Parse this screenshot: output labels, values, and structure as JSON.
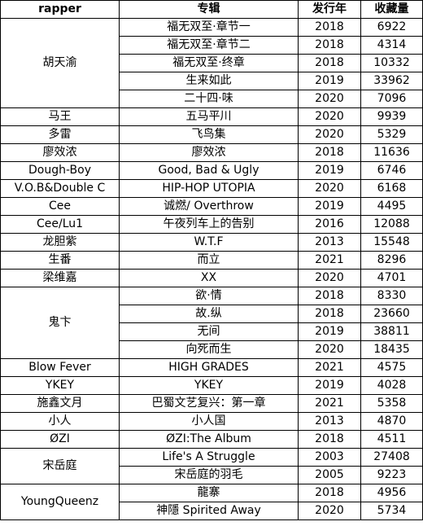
{
  "headers": [
    "rapper",
    "专辑",
    "发行年",
    "收藏量"
  ],
  "rows": [
    {
      "rapper": "胡天渝",
      "span": 5,
      "album": "福无双至·章节一",
      "year": "2018",
      "count": "6922"
    },
    {
      "rapper": null,
      "album": "福无双至·章节二",
      "year": "2018",
      "count": "4314"
    },
    {
      "rapper": null,
      "album": "福无双至·终章",
      "year": "2018",
      "count": "10332"
    },
    {
      "rapper": null,
      "album": "生来如此",
      "year": "2019",
      "count": "33962"
    },
    {
      "rapper": null,
      "album": "二十四·味",
      "year": "2020",
      "count": "7096"
    },
    {
      "rapper": "马王",
      "span": 1,
      "album": "五马平川",
      "year": "2020",
      "count": "9939"
    },
    {
      "rapper": "多雷",
      "span": 1,
      "album": "飞鸟集",
      "year": "2020",
      "count": "5329"
    },
    {
      "rapper": "廖效浓",
      "span": 1,
      "album": "廖效浓",
      "year": "2018",
      "count": "11636"
    },
    {
      "rapper": "Dough-Boy",
      "span": 1,
      "album": "Good, Bad & Ugly",
      "year": "2019",
      "count": "6746"
    },
    {
      "rapper": "V.O.B&Double C",
      "span": 1,
      "album": "HIP-HOP UTOPIA",
      "year": "2020",
      "count": "6168"
    },
    {
      "rapper": "Cee",
      "span": 1,
      "album": "诚燃/ Overthrow",
      "year": "2019",
      "count": "4495"
    },
    {
      "rapper": "Cee/Lu1",
      "span": 1,
      "album": "午夜列车上的告别",
      "year": "2016",
      "count": "12088"
    },
    {
      "rapper": "龙胆紫",
      "span": 1,
      "album": "W.T.F",
      "year": "2013",
      "count": "15548"
    },
    {
      "rapper": "生番",
      "span": 1,
      "album": "而立",
      "year": "2021",
      "count": "8296"
    },
    {
      "rapper": "梁维嘉",
      "span": 1,
      "album": "XX",
      "year": "2020",
      "count": "4701"
    },
    {
      "rapper": "鬼卞",
      "span": 4,
      "album": "欲·情",
      "year": "2018",
      "count": "8330"
    },
    {
      "rapper": null,
      "album": "故.纵",
      "year": "2018",
      "count": "23660"
    },
    {
      "rapper": null,
      "album": "无间",
      "year": "2019",
      "count": "38811"
    },
    {
      "rapper": null,
      "album": "向死而生",
      "year": "2020",
      "count": "18435"
    },
    {
      "rapper": "Blow Fever",
      "span": 1,
      "album": "HIGH GRADES",
      "year": "2021",
      "count": "4575"
    },
    {
      "rapper": "YKEY",
      "span": 1,
      "album": "YKEY",
      "year": "2019",
      "count": "4028"
    },
    {
      "rapper": "施鑫文月",
      "span": 1,
      "album": "巴蜀文艺复兴：第一章",
      "year": "2021",
      "count": "5358"
    },
    {
      "rapper": "小人",
      "span": 1,
      "album": "小人国",
      "year": "2013",
      "count": "4870"
    },
    {
      "rapper": "ØZI",
      "span": 1,
      "album": "ØZI:The Album",
      "year": "2018",
      "count": "4511"
    },
    {
      "rapper": "宋岳庭",
      "span": 2,
      "album": "Life's A Struggle",
      "year": "2003",
      "count": "27408"
    },
    {
      "rapper": null,
      "album": "宋岳庭的羽毛",
      "year": "2005",
      "count": "9223"
    },
    {
      "rapper": "YoungQueenz",
      "span": 2,
      "album": "龍寨",
      "year": "2018",
      "count": "4956"
    },
    {
      "rapper": null,
      "album": "神隱 Spirited Away",
      "year": "2020",
      "count": "5734"
    }
  ]
}
